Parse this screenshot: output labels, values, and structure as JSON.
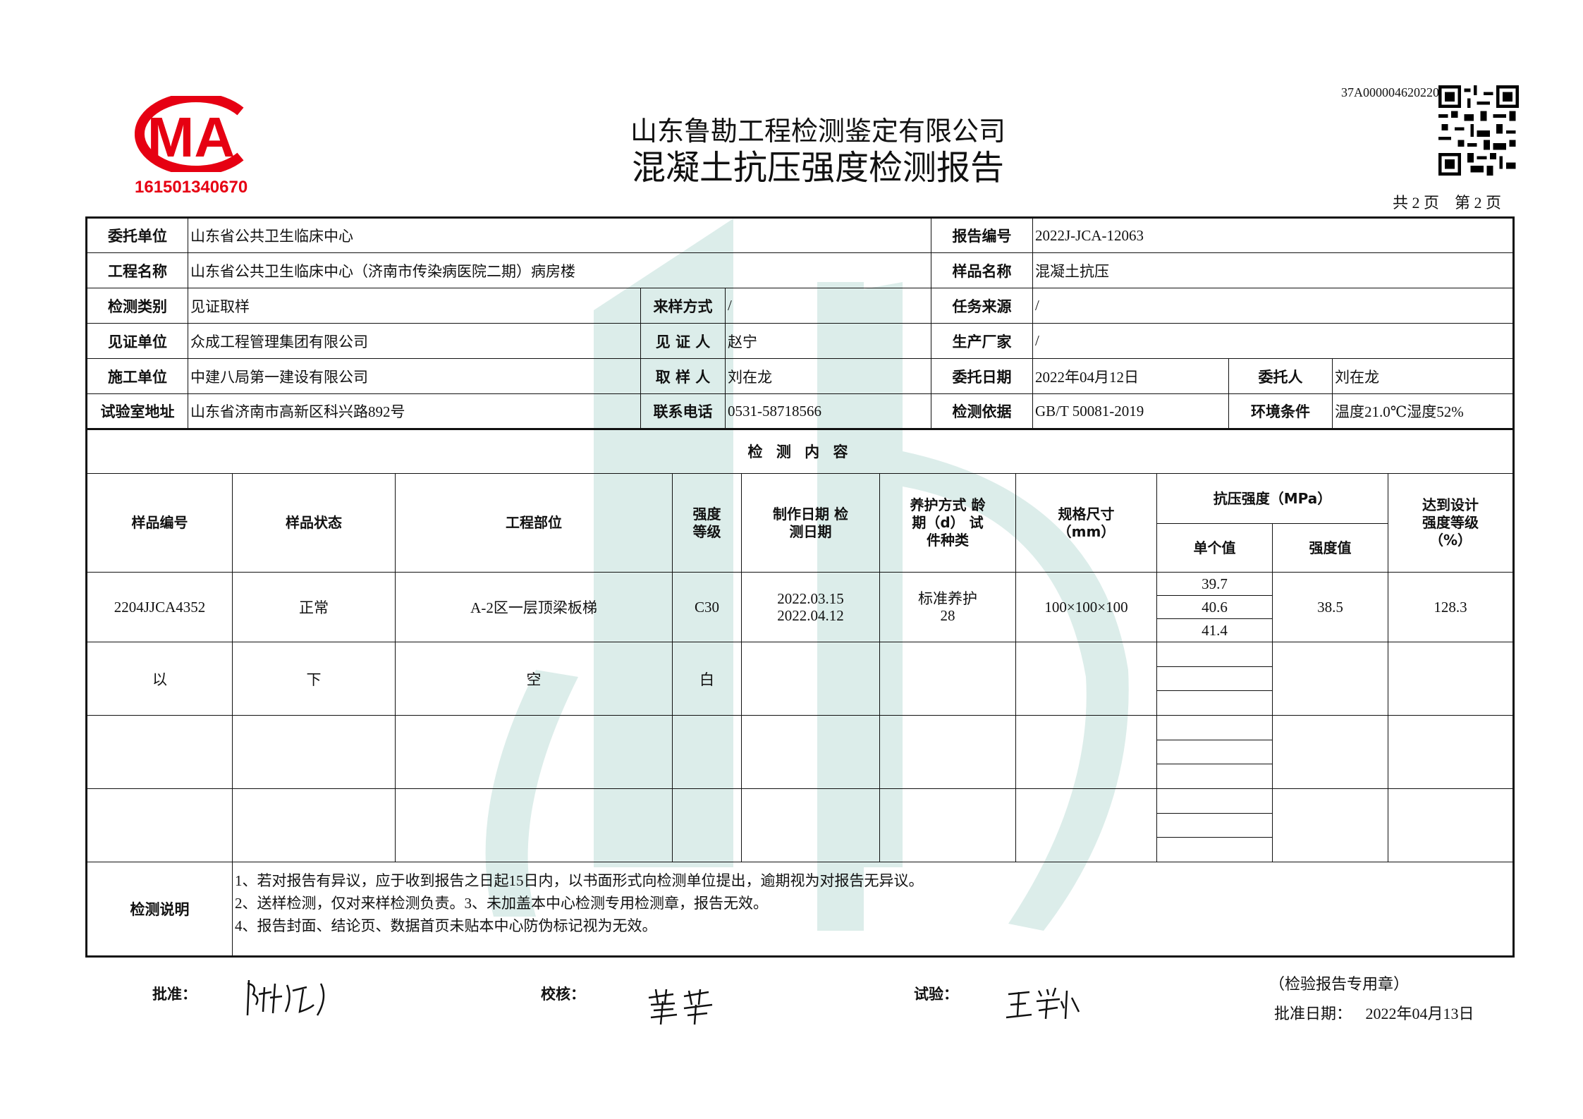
{
  "header": {
    "cma_mark": "MA",
    "cma_number": "161501340670",
    "company": "山东鲁勘工程检测鉴定有限公司",
    "report_title": "混凝土抗压强度检测报告",
    "code": "37A000004620220013245",
    "page_info": "共 2 页　第 2 页"
  },
  "info": {
    "client_label": "委托单位",
    "client": "山东省公共卫生临床中心",
    "report_no_label": "报告编号",
    "report_no": "2022J-JCA-12063",
    "project_label": "工程名称",
    "project": "山东省公共卫生临床中心（济南市传染病医院二期）病房楼",
    "sample_name_label": "样品名称",
    "sample_name": "混凝土抗压",
    "test_type_label": "检测类别",
    "test_type": "见证取样",
    "sampling_method_label": "来样方式",
    "sampling_method": "/",
    "task_source_label": "任务来源",
    "task_source": "/",
    "witness_unit_label": "见证单位",
    "witness_unit": "众成工程管理集团有限公司",
    "witness_label": "见 证 人",
    "witness": "赵宁",
    "manufacturer_label": "生产厂家",
    "manufacturer": "/",
    "contractor_label": "施工单位",
    "contractor": "中建八局第一建设有限公司",
    "sampler_label": "取 样 人",
    "sampler": "刘在龙",
    "entrust_date_label": "委托日期",
    "entrust_date": "2022年04月12日",
    "entruster_label": "委托人",
    "entruster": "刘在龙",
    "lab_address_label": "试验室地址",
    "lab_address": "山东省济南市高新区科兴路892号",
    "phone_label": "联系电话",
    "phone": "0531-58718566",
    "standard_label": "检测依据",
    "standard": "GB/T 50081-2019",
    "env_label": "环境条件",
    "env": "温度21.0℃湿度52%"
  },
  "detection": {
    "section_title": "检 测 内 容",
    "columns": {
      "sample_no": "样品编号",
      "sample_state": "样品状态",
      "location": "工程部位",
      "grade": "强度等级",
      "dates": "制作日期 检测日期",
      "curing": "养护方式 龄期（d） 试件种类",
      "size": "规格尺寸 （mm）",
      "strength": "抗压强度（MPa）",
      "single": "单个值",
      "strength_value": "强度值",
      "design_pct": "达到设计 强度等级 （%）"
    },
    "rows": [
      {
        "sample_no": "2204JJCA4352",
        "sample_state": "正常",
        "location": "A-2区一层顶梁板梯",
        "grade": "C30",
        "make_date": "2022.03.15",
        "test_date": "2022.04.12",
        "curing": "标准养护",
        "age": "28",
        "size": "100×100×100",
        "singles": [
          "39.7",
          "40.6",
          "41.4"
        ],
        "strength_value": "38.5",
        "design_pct": "128.3"
      }
    ],
    "blank_marker": [
      "以",
      "下",
      "空",
      "白"
    ]
  },
  "notes": {
    "label": "检测说明",
    "lines": [
      "1、若对报告有异议，应于收到报告之日起15日内，以书面形式向检测单位提出，逾期视为对报告无异议。",
      "2、送样检测，仅对来样检测负责。3、未加盖本中心检测专用检测章，报告无效。",
      "4、报告封面、结论页、数据首页未贴本中心防伪标记视为无效。"
    ]
  },
  "footer": {
    "approve_label": "批准：",
    "review_label": "校核：",
    "test_label": "试验：",
    "stamp_note": "（检验报告专用章）",
    "approve_date_label": "批准日期：",
    "approve_date": "2022年04月13日"
  },
  "colors": {
    "cma_red": "#e60012",
    "watermark": "#dcedea",
    "line": "#111111"
  }
}
